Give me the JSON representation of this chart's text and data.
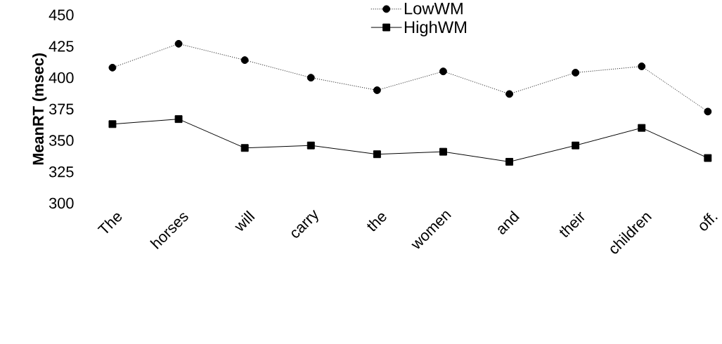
{
  "chart_data": {
    "type": "line",
    "ylabel": "MeanRT (msec)",
    "categories": [
      "The",
      "horses",
      "will",
      "carry",
      "the",
      "women",
      "and",
      "their",
      "children",
      "off."
    ],
    "series": [
      {
        "name": "LowWM",
        "color": "#000000",
        "marker": "circle",
        "line_style": "dotted",
        "values": [
          408,
          427,
          414,
          400,
          390,
          405,
          387,
          404,
          409,
          373
        ]
      },
      {
        "name": "HighWM",
        "color": "#000000",
        "marker": "square",
        "line_style": "solid",
        "values": [
          363,
          367,
          344,
          346,
          339,
          341,
          333,
          346,
          360,
          336
        ]
      }
    ],
    "ylim": [
      300,
      450
    ],
    "yticks": [
      300,
      325,
      350,
      375,
      400,
      425,
      450
    ],
    "legend": "top"
  }
}
